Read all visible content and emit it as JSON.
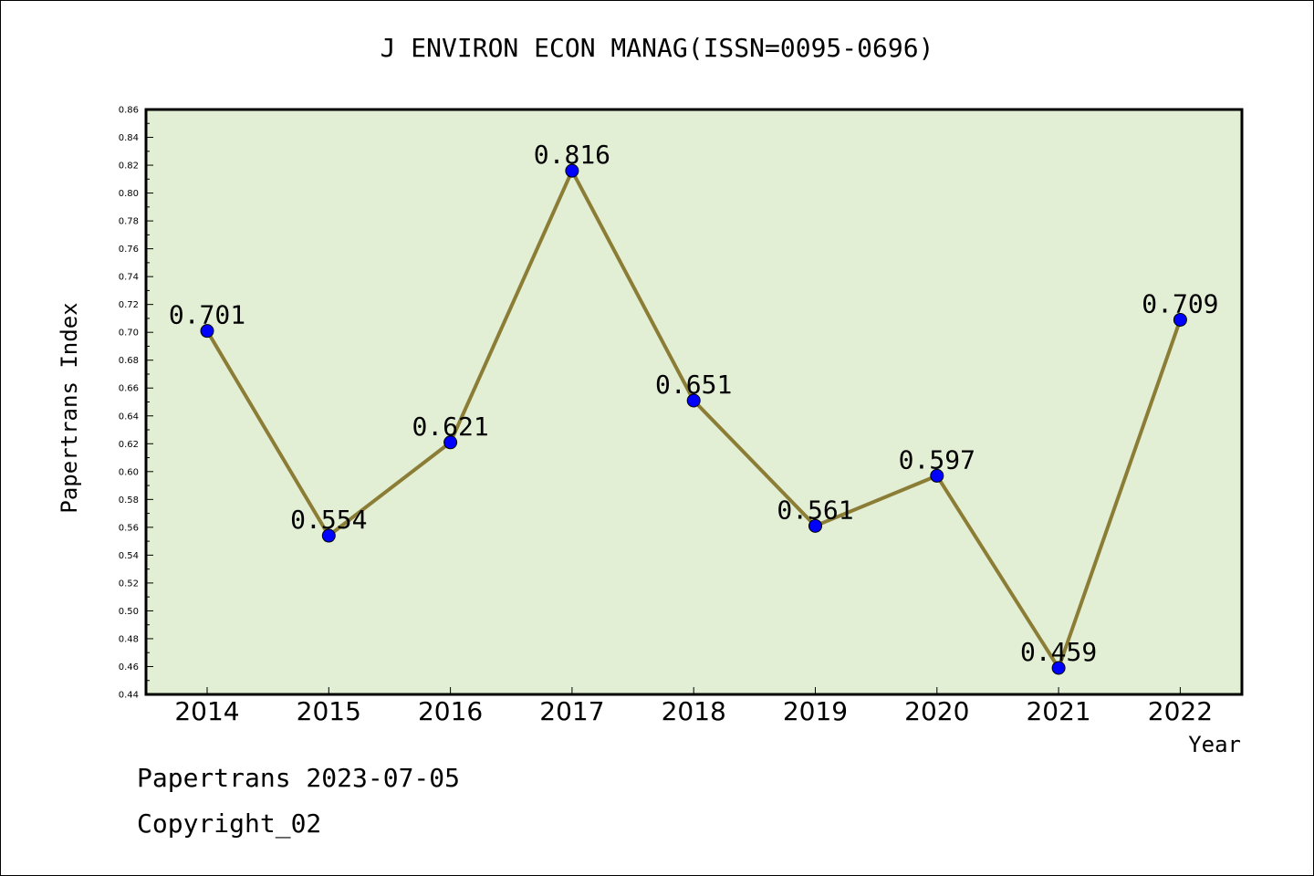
{
  "chart_data": {
    "type": "line",
    "title": "J ENVIRON ECON MANAG(ISSN=0095-0696)",
    "xlabel": "Year",
    "ylabel": "Papertrans Index",
    "categories": [
      "2014",
      "2015",
      "2016",
      "2017",
      "2018",
      "2019",
      "2020",
      "2021",
      "2022"
    ],
    "values": [
      0.701,
      0.554,
      0.621,
      0.816,
      0.651,
      0.561,
      0.597,
      0.459,
      0.709
    ],
    "value_labels": [
      "0.701",
      "0.554",
      "0.621",
      "0.816",
      "0.651",
      "0.561",
      "0.597",
      "0.459",
      "0.709"
    ],
    "ylim": [
      0.44,
      0.86
    ],
    "yticks": [
      "0.44",
      "0.46",
      "0.48",
      "0.50",
      "0.52",
      "0.54",
      "0.56",
      "0.58",
      "0.60",
      "0.62",
      "0.64",
      "0.66",
      "0.68",
      "0.70",
      "0.72",
      "0.74",
      "0.76",
      "0.78",
      "0.80",
      "0.82",
      "0.84",
      "0.86"
    ],
    "grid": false,
    "colors": {
      "plot_background": "#e2efd4",
      "line": "#8b7d35",
      "marker": "#0000ff"
    }
  },
  "footer": {
    "date_text": "Papertrans 2023-07-05",
    "copyright_text": "Copyright_02"
  }
}
